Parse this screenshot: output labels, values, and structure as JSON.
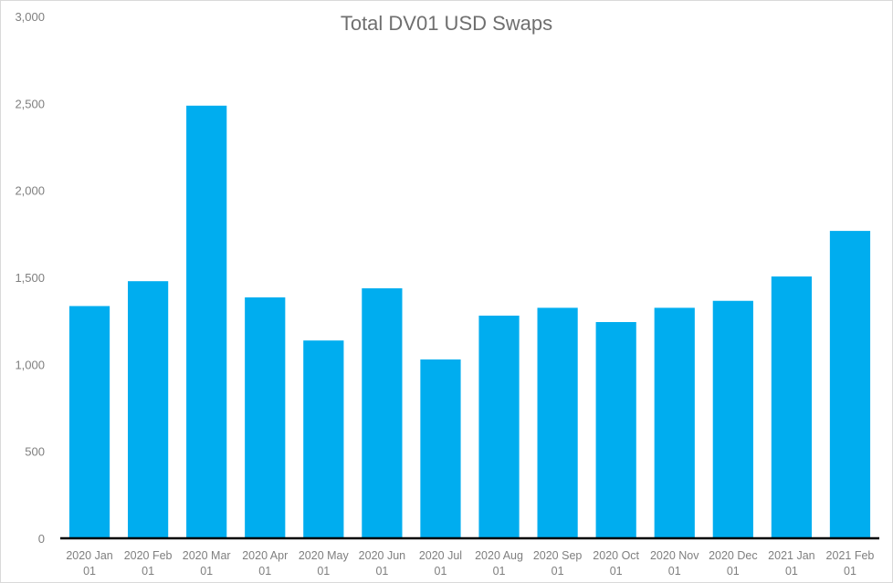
{
  "chart_data": {
    "type": "bar",
    "title": "Total DV01 USD Swaps",
    "xlabel": "",
    "ylabel": "",
    "ylim": [
      0,
      3000
    ],
    "yticks": [
      0,
      500,
      1000,
      1500,
      2000,
      2500,
      3000
    ],
    "ytick_labels": [
      "0",
      "500",
      "1,000",
      "1,500",
      "2,000",
      "2,500",
      "3,000"
    ],
    "categories": [
      [
        "2020 Jan",
        "01"
      ],
      [
        "2020 Feb",
        "01"
      ],
      [
        "2020 Mar",
        "01"
      ],
      [
        "2020 Apr",
        "01"
      ],
      [
        "2020 May",
        "01"
      ],
      [
        "2020 Jun",
        "01"
      ],
      [
        "2020 Jul",
        "01"
      ],
      [
        "2020 Aug",
        "01"
      ],
      [
        "2020 Sep",
        "01"
      ],
      [
        "2020 Oct",
        "01"
      ],
      [
        "2020 Nov",
        "01"
      ],
      [
        "2020 Dec",
        "01"
      ],
      [
        "2021 Jan",
        "01"
      ],
      [
        "2021 Feb",
        "01"
      ]
    ],
    "values": [
      1335,
      1478,
      2487,
      1385,
      1137,
      1437,
      1028,
      1280,
      1325,
      1243,
      1325,
      1365,
      1505,
      1767
    ],
    "grid": false,
    "legend": "none",
    "bar_color": "#00adef",
    "axis_color": "#000000"
  }
}
